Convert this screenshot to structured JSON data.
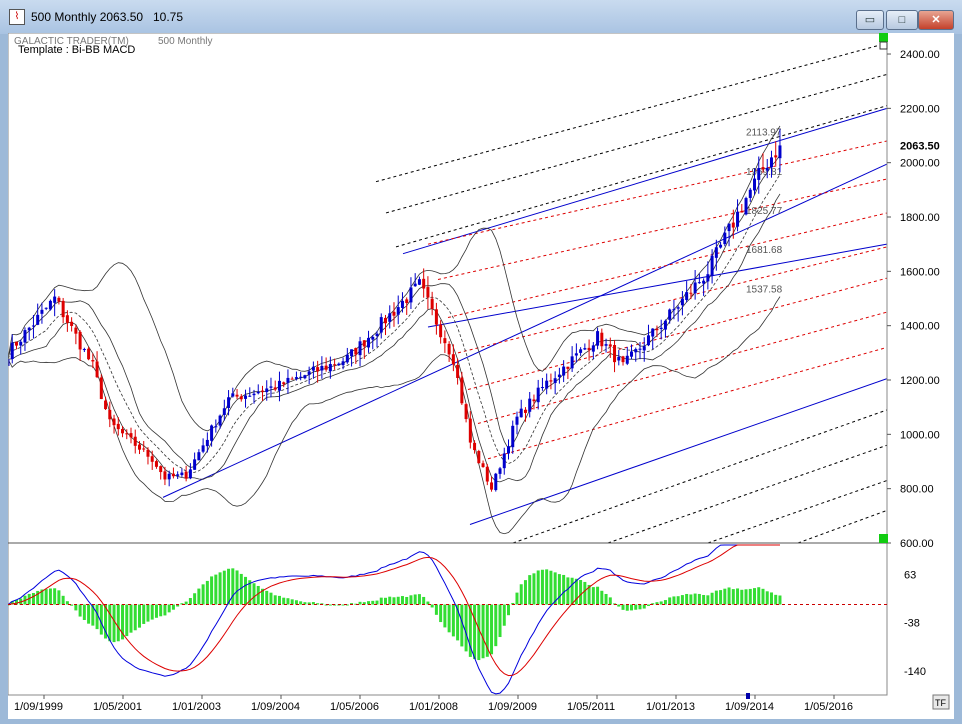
{
  "window": {
    "title": "500 Monthly 2063.50",
    "title_value": "10.75",
    "buttons": {
      "minimize": "▭",
      "maximize": "□",
      "close": "✕"
    }
  },
  "header": {
    "brand": "GALACTIC TRADER(TM)",
    "series": "500 Monthly",
    "template": "Template : Bi-BB MACD"
  },
  "colors": {
    "up_candle": "#0000cc",
    "down_candle": "#dd0000",
    "channel": "#0000cc",
    "fib_red": "#dd0000",
    "fib_black": "#000000",
    "histogram": "#33dd33",
    "macd_line": "#0000dd",
    "signal_line": "#dd0000"
  },
  "chart_data": [
    {
      "type": "candlestick",
      "title": "500 Monthly",
      "y_ticks": [
        "2400.00",
        "2200.00",
        "2000.00",
        "1800.00",
        "1600.00",
        "1400.00",
        "1200.00",
        "1000.00",
        "800.00",
        "600.00"
      ],
      "ylim": [
        600,
        2470
      ],
      "x_ticks": [
        "1/09/1999",
        "1/05/2001",
        "1/01/2003",
        "1/09/2004",
        "1/05/2006",
        "1/01/2008",
        "1/09/2009",
        "1/05/2011",
        "1/01/2013",
        "1/09/2014",
        "1/05/2016"
      ],
      "last_price": "2063.50",
      "level_labels": [
        "2113.97",
        "1969.81",
        "1825.77",
        "1681.68",
        "1537.58"
      ],
      "approx_closes": [
        {
          "date": "1999-09",
          "close": 1300
        },
        {
          "date": "2000-08",
          "close": 1500
        },
        {
          "date": "2001-05",
          "close": 1250
        },
        {
          "date": "2001-09",
          "close": 1040
        },
        {
          "date": "2002-07",
          "close": 910
        },
        {
          "date": "2002-10",
          "close": 840
        },
        {
          "date": "2003-03",
          "close": 850
        },
        {
          "date": "2004-01",
          "close": 1130
        },
        {
          "date": "2005-01",
          "close": 1180
        },
        {
          "date": "2006-05",
          "close": 1280
        },
        {
          "date": "2007-10",
          "close": 1550
        },
        {
          "date": "2008-06",
          "close": 1280
        },
        {
          "date": "2008-10",
          "close": 970
        },
        {
          "date": "2009-03",
          "close": 800
        },
        {
          "date": "2009-09",
          "close": 1060
        },
        {
          "date": "2010-04",
          "close": 1190
        },
        {
          "date": "2011-04",
          "close": 1360
        },
        {
          "date": "2011-10",
          "close": 1250
        },
        {
          "date": "2012-09",
          "close": 1440
        },
        {
          "date": "2013-06",
          "close": 1600
        },
        {
          "date": "2014-03",
          "close": 1870
        },
        {
          "date": "2014-08",
          "close": 2003
        },
        {
          "date": "2014-11",
          "close": 2063.5
        }
      ]
    },
    {
      "type": "macd",
      "y_ticks": [
        "63",
        "-38",
        "-140"
      ],
      "ylim": [
        -190,
        125
      ],
      "histogram_color": "green",
      "lines": [
        "macd",
        "signal"
      ]
    }
  ],
  "footer": {
    "tf_label": "TF"
  }
}
